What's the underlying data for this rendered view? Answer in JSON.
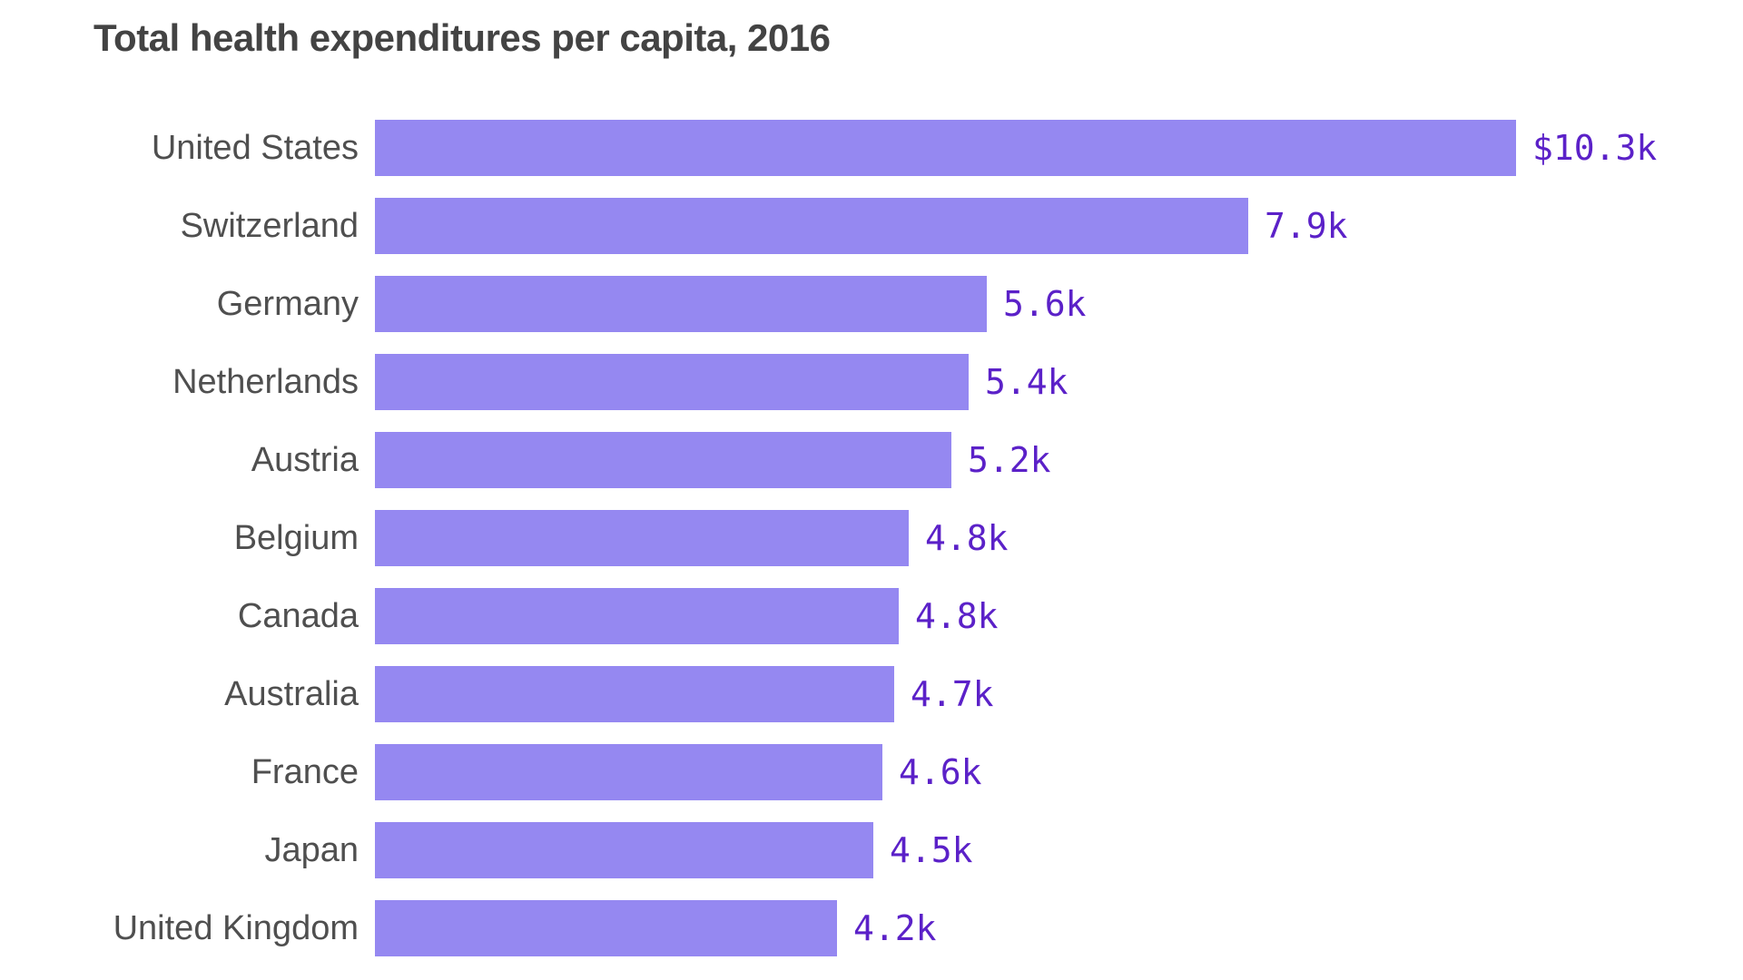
{
  "page": {
    "background": "#ffffff"
  },
  "chart_data": {
    "type": "bar",
    "orientation": "horizontal",
    "title": "Total health expenditures per capita, 2016",
    "categories": [
      "United States",
      "Switzerland",
      "Germany",
      "Netherlands",
      "Austria",
      "Belgium",
      "Canada",
      "Australia",
      "France",
      "Japan",
      "United Kingdom"
    ],
    "values_usd": [
      10348,
      7919,
      5551,
      5385,
      5227,
      4840,
      4753,
      4708,
      4600,
      4519,
      4192
    ],
    "value_labels": [
      "$10.3k",
      "7.9k",
      "5.6k",
      "5.4k",
      "5.2k",
      "4.8k",
      "4.8k",
      "4.7k",
      "4.6k",
      "4.5k",
      "4.2k"
    ],
    "xlim": [
      0,
      10348
    ],
    "grid": false,
    "legend": false,
    "bar_color": "#9588f1",
    "value_label_color": "#5b21c8",
    "category_label_color": "#4f4f4f",
    "title_color": "#434343"
  }
}
